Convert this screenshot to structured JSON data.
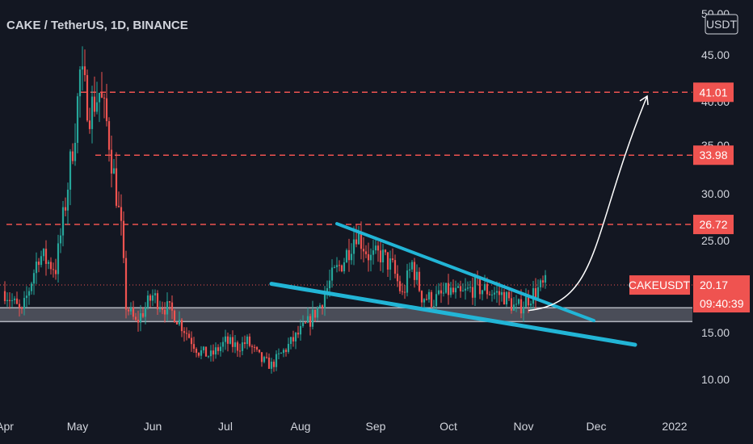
{
  "chart_data": {
    "type": "candlestick",
    "title": "CAKE / TetherUS, 1D, BINANCE",
    "currency_unit": "USDT",
    "ylim": [
      8,
      51
    ],
    "y_ticks": [
      {
        "value": 50,
        "label": "50.00"
      },
      {
        "value": 45,
        "label": "45.00"
      },
      {
        "value": 40,
        "label": "40.00"
      },
      {
        "value": 35,
        "label": "35.00"
      },
      {
        "value": 30,
        "label": "30.00"
      },
      {
        "value": 25,
        "label": "25.00"
      },
      {
        "value": 15,
        "label": "15.00"
      },
      {
        "value": 10,
        "label": "10.00"
      }
    ],
    "x_ticks": [
      {
        "date": "2021-04-01",
        "label": "Apr"
      },
      {
        "date": "2021-05-01",
        "label": "May"
      },
      {
        "date": "2021-06-01",
        "label": "Jun"
      },
      {
        "date": "2021-07-01",
        "label": "Jul"
      },
      {
        "date": "2021-08-01",
        "label": "Aug"
      },
      {
        "date": "2021-09-01",
        "label": "Sep"
      },
      {
        "date": "2021-10-01",
        "label": "Oct"
      },
      {
        "date": "2021-11-01",
        "label": "Nov"
      },
      {
        "date": "2021-12-01",
        "label": "Dec"
      },
      {
        "date": "2022-01-01",
        "label": "2022"
      }
    ],
    "x_range": [
      "2021-04-01",
      "2022-01-10"
    ],
    "price_series": {
      "name": "CAKEUSDT",
      "x": [
        "2021-04-01",
        "2021-04-08",
        "2021-04-15",
        "2021-04-22",
        "2021-04-26",
        "2021-04-30",
        "2021-05-02",
        "2021-05-06",
        "2021-05-10",
        "2021-05-13",
        "2021-05-17",
        "2021-05-19",
        "2021-05-21",
        "2021-05-25",
        "2021-06-01",
        "2021-06-05",
        "2021-06-10",
        "2021-06-15",
        "2021-06-20",
        "2021-06-25",
        "2021-07-01",
        "2021-07-06",
        "2021-07-10",
        "2021-07-16",
        "2021-07-20",
        "2021-07-25",
        "2021-07-30",
        "2021-08-04",
        "2021-08-09",
        "2021-08-14",
        "2021-08-19",
        "2021-08-24",
        "2021-08-27",
        "2021-08-30",
        "2021-09-03",
        "2021-09-08",
        "2021-09-12",
        "2021-09-16",
        "2021-09-20",
        "2021-09-25",
        "2021-10-01",
        "2021-10-06",
        "2021-10-12",
        "2021-10-18",
        "2021-10-24",
        "2021-10-29",
        "2021-11-02",
        "2021-11-06",
        "2021-11-10"
      ],
      "close": [
        19.5,
        17.0,
        23.5,
        22.0,
        29.0,
        37.0,
        43.0,
        39.0,
        41.0,
        37.5,
        30.0,
        26.0,
        18.0,
        16.0,
        19.0,
        18.0,
        17.0,
        15.0,
        13.0,
        12.5,
        14.0,
        13.5,
        14.0,
        12.0,
        11.5,
        13.0,
        14.5,
        16.0,
        18.0,
        21.0,
        23.0,
        26.0,
        24.5,
        23.0,
        23.5,
        22.0,
        19.0,
        22.5,
        19.0,
        18.5,
        19.5,
        19.0,
        20.0,
        19.5,
        19.0,
        17.5,
        18.5,
        19.5,
        20.17
      ]
    },
    "horizontal_levels": [
      {
        "value": 41.01,
        "label": "41.01"
      },
      {
        "value": 33.98,
        "label": "33.98"
      },
      {
        "value": 26.72,
        "label": "26.72"
      }
    ],
    "support_zone": [
      16.2,
      17.7
    ],
    "trendlines": [
      {
        "name": "upper",
        "from": {
          "date": "2021-08-16",
          "price": 26.8
        },
        "to": {
          "date": "2021-11-30",
          "price": 16.3
        }
      },
      {
        "name": "lower",
        "from": {
          "date": "2021-07-20",
          "price": 20.3
        },
        "to": {
          "date": "2021-12-17",
          "price": 13.7
        }
      }
    ],
    "projection": {
      "from": {
        "date": "2021-11-03",
        "price": 17.4
      },
      "to": {
        "date": "2021-12-22",
        "price": 40.6
      }
    },
    "last_price": {
      "symbol": "CAKEUSDT",
      "value": 20.17,
      "label": "20.17",
      "countdown": "09:40:39"
    },
    "colors": {
      "background": "#131722",
      "up": "#26a69a",
      "down": "#ef5350",
      "level": "#ef5350",
      "trendline": "#22b5d6",
      "zone_fill": "#5d606b",
      "zone_border": "#b2b5be",
      "projection": "#ffffff",
      "text": "#d1d4dc"
    }
  }
}
